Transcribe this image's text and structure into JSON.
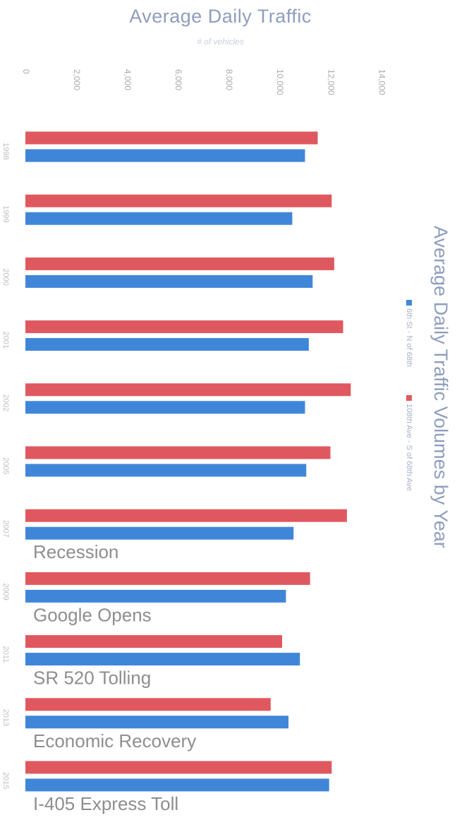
{
  "chart_data": {
    "type": "bar",
    "title": "Average Daily Traffic",
    "subtitle": "# of vehicles",
    "side_title": "Average Daily Traffic Volumes by Year",
    "value_axis": {
      "min": 0,
      "max": 14000,
      "ticks": [
        0,
        2000,
        4000,
        6000,
        8000,
        10000,
        12000,
        14000
      ],
      "tick_labels": [
        "0",
        "2,000",
        "4,000",
        "6,000",
        "8,000",
        "10,000",
        "12,000",
        "14,000"
      ]
    },
    "categories": [
      "1998",
      "1999",
      "2000",
      "2001",
      "2002",
      "2005",
      "2007",
      "2009",
      "2011",
      "2013",
      "2015"
    ],
    "series": [
      {
        "name": "108th Ave - S of 68th Ave",
        "color": "#e0585f",
        "values": [
          11500,
          12050,
          12150,
          12500,
          12800,
          12000,
          12650,
          11200,
          10100,
          9650,
          12050
        ]
      },
      {
        "name": "6th St - N of 68th",
        "color": "#3f86d8",
        "values": [
          11000,
          10500,
          11300,
          11150,
          11000,
          11050,
          10550,
          10250,
          10800,
          10350,
          11950
        ]
      }
    ],
    "annotations": [
      {
        "after_category": "2007",
        "text": "Recession"
      },
      {
        "after_category": "2009",
        "text": "Google Opens"
      },
      {
        "after_category": "2011",
        "text": "SR 520 Tolling"
      },
      {
        "after_category": "2013",
        "text": "Economic Recovery"
      },
      {
        "after_category": "2015",
        "text": "I-405 Express Toll"
      }
    ],
    "legend": {
      "position": "right",
      "order": [
        "6th St - N of 68th",
        "108th Ave - S of 68th Ave"
      ]
    },
    "grid": false
  }
}
